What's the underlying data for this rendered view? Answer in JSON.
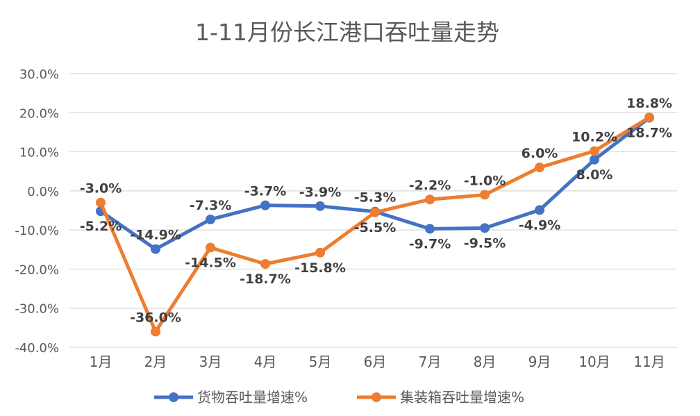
{
  "chart_data": {
    "type": "line",
    "title": "1-11月份长江港口吞吐量走势",
    "categories": [
      "1月",
      "2月",
      "3月",
      "4月",
      "5月",
      "6月",
      "7月",
      "8月",
      "9月",
      "10月",
      "11月"
    ],
    "ylim": [
      -40,
      30
    ],
    "yticks": [
      30,
      20,
      10,
      0,
      -10,
      -20,
      -30,
      -40
    ],
    "ytick_labels": [
      "30.0%",
      "20.0%",
      "10.0%",
      "0.0%",
      "-10.0%",
      "-20.0%",
      "-30.0%",
      "-40.0%"
    ],
    "grid": true,
    "legend_position": "bottom",
    "series": [
      {
        "name": "货物吞吐量增速%",
        "color": "#4472C4",
        "values": [
          -5.2,
          -14.9,
          -7.3,
          -3.7,
          -3.9,
          -5.3,
          -9.7,
          -9.5,
          -4.9,
          8.0,
          18.7
        ],
        "labels": [
          "-5.2%",
          "-14.9%",
          "-7.3%",
          "-3.7%",
          "-3.9%",
          "-5.3%",
          "-9.7%",
          "-9.5%",
          "-4.9%",
          "8.0%",
          "18.7%"
        ]
      },
      {
        "name": "集装箱吞吐量增速%",
        "color": "#ED7D31",
        "values": [
          -3.0,
          -36.0,
          -14.5,
          -18.7,
          -15.8,
          -5.5,
          -2.2,
          -1.0,
          6.0,
          10.2,
          18.8
        ],
        "labels": [
          "-3.0%",
          "-36.0%",
          "-14.5%",
          "-18.7%",
          "-15.8%",
          "-5.5%",
          "-2.2%",
          "-1.0%",
          "6.0%",
          "10.2%",
          "18.8%"
        ]
      }
    ]
  }
}
